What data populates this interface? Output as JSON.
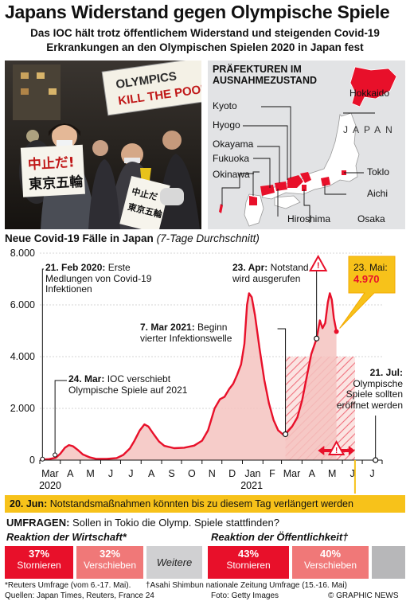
{
  "header": {
    "title": "Japans Widerstand gegen Olympische Spiele",
    "subtitle_line1": "Das IOC hält  trotz öffentlichem Widerstand und steigenden Covid-19",
    "subtitle_line2": "Erkrankungen an den Olympischen Spielen 2020 in Japan fest"
  },
  "photo": {
    "banner_line1": "OLYMPICS",
    "banner_line2": "KILL THE POOR",
    "sign_left_line1": "中止だ!",
    "sign_left_line2": "東京五輪",
    "sign_right_line1": "中止だ",
    "sign_right_line2": "東京五輪"
  },
  "map": {
    "heading_line1": "PRÄFEKTUREN IM",
    "heading_line2": "AUSNAHMEZUSTAND",
    "country": "JAPAN",
    "prefectures": [
      "Hokkaido",
      "Kyoto",
      "Hyogo",
      "Okayama",
      "Fukuoka",
      "Okinawa",
      "Toklo",
      "Aichi",
      "Hiroshima",
      "Osaka"
    ],
    "highlight_color": "#e8102a",
    "land_color": "#ffffff",
    "sea_color": "#e2e3e5"
  },
  "chart_data": {
    "type": "area",
    "title": "Neue Covid-19 Fälle in Japan",
    "title_note": "(7-Tage Durchschnitt)",
    "ylim": [
      0,
      8000
    ],
    "y_ticks": [
      "0",
      "2.000",
      "4.000",
      "6.000",
      "8.000"
    ],
    "x_ticks": [
      "Mar",
      "A",
      "M",
      "J",
      "J",
      "A",
      "S",
      "O",
      "N",
      "D",
      "Jan",
      "F",
      "Mar",
      "A",
      "M",
      "J",
      "J"
    ],
    "x_year_labels": [
      "2020",
      "2021"
    ],
    "series": [
      {
        "points": [
          [
            "2020-03-01",
            20
          ],
          [
            "2020-03-15",
            40
          ],
          [
            "2020-03-25",
            90
          ],
          [
            "2020-04-01",
            250
          ],
          [
            "2020-04-08",
            480
          ],
          [
            "2020-04-14",
            580
          ],
          [
            "2020-04-20",
            540
          ],
          [
            "2020-04-28",
            380
          ],
          [
            "2020-05-05",
            220
          ],
          [
            "2020-05-15",
            110
          ],
          [
            "2020-05-25",
            50
          ],
          [
            "2020-06-10",
            45
          ],
          [
            "2020-06-25",
            80
          ],
          [
            "2020-07-05",
            200
          ],
          [
            "2020-07-15",
            450
          ],
          [
            "2020-07-22",
            750
          ],
          [
            "2020-07-30",
            1150
          ],
          [
            "2020-08-06",
            1380
          ],
          [
            "2020-08-12",
            1300
          ],
          [
            "2020-08-20",
            1000
          ],
          [
            "2020-08-28",
            720
          ],
          [
            "2020-09-05",
            550
          ],
          [
            "2020-09-20",
            460
          ],
          [
            "2020-10-05",
            480
          ],
          [
            "2020-10-20",
            560
          ],
          [
            "2020-11-01",
            750
          ],
          [
            "2020-11-10",
            1150
          ],
          [
            "2020-11-20",
            2000
          ],
          [
            "2020-11-28",
            2350
          ],
          [
            "2020-12-05",
            2450
          ],
          [
            "2020-12-12",
            2750
          ],
          [
            "2020-12-18",
            2950
          ],
          [
            "2020-12-24",
            3300
          ],
          [
            "2020-12-30",
            3700
          ],
          [
            "2021-01-04",
            4500
          ],
          [
            "2021-01-08",
            6000
          ],
          [
            "2021-01-11",
            6450
          ],
          [
            "2021-01-15",
            6300
          ],
          [
            "2021-01-20",
            5600
          ],
          [
            "2021-01-27",
            4300
          ],
          [
            "2021-02-03",
            3100
          ],
          [
            "2021-02-10",
            2200
          ],
          [
            "2021-02-17",
            1550
          ],
          [
            "2021-02-24",
            1150
          ],
          [
            "2021-03-03",
            1000
          ],
          [
            "2021-03-07",
            1000
          ],
          [
            "2021-03-12",
            1150
          ],
          [
            "2021-03-17",
            1300
          ],
          [
            "2021-03-25",
            1650
          ],
          [
            "2021-04-01",
            2300
          ],
          [
            "2021-04-08",
            3200
          ],
          [
            "2021-04-15",
            4100
          ],
          [
            "2021-04-23",
            4700
          ],
          [
            "2021-04-28",
            5400
          ],
          [
            "2021-05-02",
            5100
          ],
          [
            "2021-05-06",
            5300
          ],
          [
            "2021-05-10",
            6100
          ],
          [
            "2021-05-13",
            6450
          ],
          [
            "2021-05-16",
            6200
          ],
          [
            "2021-05-19",
            5500
          ],
          [
            "2021-05-23",
            4970
          ]
        ]
      }
    ],
    "shaded_period": [
      "2021-03-07",
      "2021-06-20"
    ],
    "end_marker": "2021-07-21",
    "colors": {
      "line": "#e8102a",
      "fill": "#f5c3c0",
      "hatch": "#e8102a",
      "callout": "#f7c21a"
    }
  },
  "annotations": {
    "feb21_date": "21. Feb 2020:",
    "feb21_text": " Erste",
    "feb21_line2": "Medlungen von Covid-19",
    "feb21_line3": "Infektionen",
    "mar24_date": "24. Mar:",
    "mar24_text": " IOC verschiebt",
    "mar24_line2": "Olympische Spiele auf 2021",
    "mar7_date": "7. Mar 2021:",
    "mar7_text": " Beginn",
    "mar7_line2": "vierter Infektionswelle",
    "apr23_date": "23. Apr:",
    "apr23_text": " Notstand",
    "apr23_line2": "wird ausgerufen",
    "may23_date": "23. Mai:",
    "may23_value": "4.970",
    "jul21_date": "21. Jul:",
    "jul21_line2": "Olympische",
    "jul21_line3": "Spiele sollten",
    "jul21_line4": "eröffnet werden"
  },
  "june_bar": {
    "date": "20. Jun:",
    "text": " Notstandsmaßnahmen könnten bis zu diesem Tag verlängert werden"
  },
  "polls": {
    "label": "UMFRAGEN:",
    "question": " Sollen in Tokio die Olymp. Spiele stattfinden?",
    "business_heading": "Reaktion der Wirtschaft*",
    "public_heading": "Reaktion der Öffentlichkeit†",
    "business": [
      {
        "pct": "37%",
        "label": "Stornieren",
        "color": "#e8102a"
      },
      {
        "pct": "32%",
        "label": "Verschieben",
        "color": "#f07878"
      },
      {
        "pct": "",
        "label": "Weitere",
        "color": "#d0d0d2"
      }
    ],
    "public": [
      {
        "pct": "43%",
        "label": "Stornieren",
        "color": "#e8102a"
      },
      {
        "pct": "40%",
        "label": "Verschieben",
        "color": "#f07878"
      },
      {
        "pct": "",
        "label": "",
        "color": "#b7b7b9"
      }
    ]
  },
  "footer": {
    "note_left": "*Reuters Umfrage (vom 6.-17. Mai).",
    "note_right": "†Asahi Shimbun nationale Zeitung Umfrage (15.-16. Mai)",
    "sources": "Quellen: Japan Times, Reuters, France 24",
    "photo_credit": "Foto: Getty Images",
    "copyright": "© GRAPHIC NEWS"
  }
}
